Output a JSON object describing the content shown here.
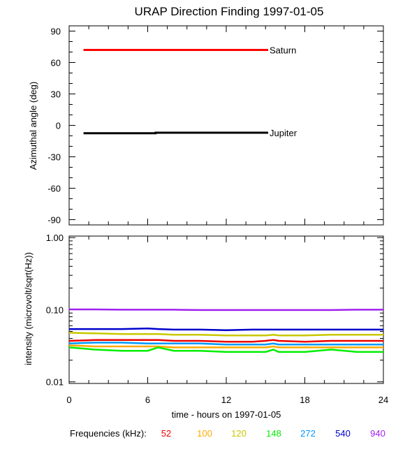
{
  "chart_data": [
    {
      "type": "line",
      "title": "URAP Direction Finding  1997-01-05",
      "ylabel": "Azimuthal angle (deg)",
      "xlim": [
        0,
        24
      ],
      "ylim": [
        -95,
        95
      ],
      "yticks": [
        90,
        60,
        30,
        0,
        -30,
        -60,
        -90
      ],
      "ytick_labels": [
        "90",
        "60",
        "30",
        "0",
        "-30",
        "-60",
        "-90"
      ],
      "series": [
        {
          "name": "Saturn",
          "color": "#ff0000",
          "x": [
            1.1,
            15.2
          ],
          "y": [
            72,
            72
          ]
        },
        {
          "name": "Jupiter",
          "color": "#000000",
          "x": [
            1.1,
            6.6,
            6.6,
            15.2
          ],
          "y": [
            -7.5,
            -7.5,
            -7,
            -7
          ]
        }
      ]
    },
    {
      "type": "line",
      "ylabel": "intensity (microvolt/sqrt(Hz))",
      "xlabel": "time - hours on 1997-01-05",
      "scale_y": "log",
      "xlim": [
        0,
        24
      ],
      "ylim": [
        0.0095,
        1.05
      ],
      "xticks": [
        0,
        6,
        12,
        18,
        24
      ],
      "xtick_labels": [
        "0",
        "6",
        "12",
        "18",
        "24"
      ],
      "yticks": [
        1.0,
        0.1,
        0.01
      ],
      "ytick_labels": [
        "1.00",
        "0.10",
        "0.01"
      ],
      "x": [
        0,
        2,
        4,
        6,
        6.8,
        8,
        10,
        12,
        14,
        15,
        15.6,
        16,
        18,
        20,
        22,
        24
      ],
      "series": [
        {
          "name": "940",
          "color": "#a020f0",
          "values": [
            0.101,
            0.101,
            0.1,
            0.1,
            0.1,
            0.1,
            0.099,
            0.099,
            0.099,
            0.099,
            0.099,
            0.099,
            0.099,
            0.099,
            0.1,
            0.1
          ]
        },
        {
          "name": "540",
          "color": "#0000cc",
          "values": [
            0.054,
            0.054,
            0.054,
            0.055,
            0.054,
            0.053,
            0.053,
            0.052,
            0.053,
            0.053,
            0.053,
            0.053,
            0.053,
            0.053,
            0.053,
            0.053
          ]
        },
        {
          "name": "120",
          "color": "#c8c800",
          "values": [
            0.048,
            0.047,
            0.046,
            0.046,
            0.046,
            0.045,
            0.045,
            0.044,
            0.044,
            0.044,
            0.045,
            0.044,
            0.044,
            0.045,
            0.045,
            0.045
          ]
        },
        {
          "name": "52",
          "color": "#ee0000",
          "values": [
            0.037,
            0.038,
            0.038,
            0.038,
            0.038,
            0.037,
            0.037,
            0.036,
            0.036,
            0.037,
            0.038,
            0.037,
            0.036,
            0.037,
            0.037,
            0.037
          ]
        },
        {
          "name": "272",
          "color": "#0099ff",
          "values": [
            0.034,
            0.035,
            0.035,
            0.034,
            0.034,
            0.034,
            0.034,
            0.033,
            0.033,
            0.033,
            0.034,
            0.033,
            0.033,
            0.033,
            0.033,
            0.033
          ]
        },
        {
          "name": "100",
          "color": "#ffaa00",
          "values": [
            0.032,
            0.031,
            0.031,
            0.031,
            0.031,
            0.03,
            0.03,
            0.03,
            0.03,
            0.03,
            0.031,
            0.03,
            0.03,
            0.03,
            0.03,
            0.03
          ]
        },
        {
          "name": "148",
          "color": "#00ee00",
          "values": [
            0.03,
            0.028,
            0.027,
            0.027,
            0.03,
            0.027,
            0.027,
            0.026,
            0.026,
            0.026,
            0.028,
            0.026,
            0.026,
            0.028,
            0.026,
            0.026
          ]
        }
      ]
    }
  ],
  "legend": {
    "label": "Frequencies (kHz):",
    "items": [
      {
        "text": "52",
        "color": "#ee0000"
      },
      {
        "text": "100",
        "color": "#ffaa00"
      },
      {
        "text": "120",
        "color": "#c8c800"
      },
      {
        "text": "148",
        "color": "#00ee00"
      },
      {
        "text": "272",
        "color": "#0099ff"
      },
      {
        "text": "540",
        "color": "#0000cc"
      },
      {
        "text": "940",
        "color": "#a020f0"
      }
    ]
  }
}
